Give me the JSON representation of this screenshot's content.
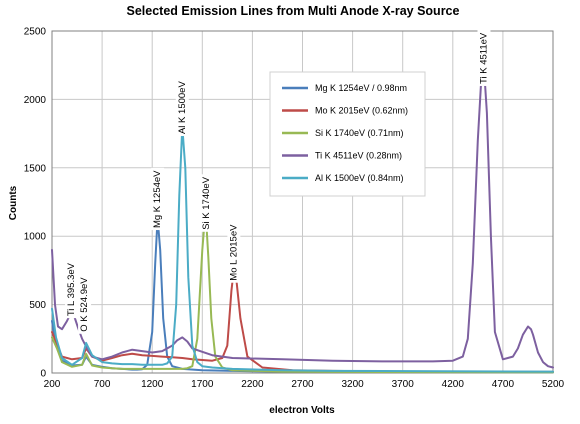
{
  "chart_data": {
    "type": "line",
    "title": "Selected Emission Lines from Multi Anode X-ray Source",
    "xlabel": "electron Volts",
    "ylabel": "Counts",
    "xlim": [
      200,
      5200
    ],
    "ylim": [
      0,
      2500
    ],
    "xticks": [
      200,
      700,
      1200,
      1700,
      2200,
      2700,
      3200,
      3700,
      4200,
      4700,
      5200
    ],
    "yticks": [
      0,
      500,
      1000,
      1500,
      2000,
      2500
    ],
    "grid": true,
    "legend_position": "upper-middle",
    "series": [
      {
        "name": "Mg K 1254eV / 0.98nm",
        "color": "#4a7ebb",
        "x": [
          200,
          240,
          300,
          400,
          500,
          540,
          600,
          700,
          800,
          900,
          1000,
          1050,
          1100,
          1150,
          1200,
          1230,
          1254,
          1280,
          1310,
          1350,
          1400,
          1500,
          1700,
          2000,
          2500,
          3000,
          4000,
          5200
        ],
        "y": [
          380,
          200,
          90,
          55,
          60,
          120,
          60,
          45,
          35,
          30,
          25,
          25,
          28,
          60,
          300,
          800,
          1130,
          900,
          400,
          120,
          50,
          30,
          20,
          15,
          10,
          10,
          8,
          5
        ]
      },
      {
        "name": "Mo K 2015eV (0.62nm)",
        "color": "#be4b48",
        "x": [
          200,
          300,
          400,
          500,
          540,
          600,
          700,
          800,
          900,
          1000,
          1100,
          1200,
          1300,
          1400,
          1500,
          1600,
          1700,
          1800,
          1900,
          1950,
          1990,
          2015,
          2040,
          2080,
          2150,
          2300,
          2600,
          3000,
          3500,
          4000,
          5200
        ],
        "y": [
          300,
          120,
          100,
          110,
          180,
          120,
          90,
          110,
          130,
          140,
          130,
          125,
          120,
          115,
          110,
          100,
          95,
          90,
          110,
          200,
          600,
          760,
          680,
          400,
          120,
          40,
          20,
          15,
          12,
          10,
          8
        ]
      },
      {
        "name": "Si K 1740eV (0.71nm)",
        "color": "#98b954",
        "x": [
          200,
          250,
          300,
          400,
          500,
          540,
          600,
          700,
          800,
          900,
          1000,
          1100,
          1200,
          1300,
          1400,
          1500,
          1550,
          1600,
          1650,
          1700,
          1720,
          1740,
          1760,
          1790,
          1830,
          1900,
          2000,
          2500,
          3000,
          5200
        ],
        "y": [
          260,
          180,
          80,
          45,
          60,
          140,
          55,
          40,
          35,
          30,
          30,
          30,
          30,
          30,
          30,
          30,
          35,
          50,
          250,
          900,
          1080,
          1100,
          850,
          400,
          120,
          40,
          20,
          10,
          8,
          5
        ]
      },
      {
        "name": "Ti K 4511eV (0.28nm)",
        "color": "#7d60a0",
        "x": [
          200,
          230,
          260,
          300,
          350,
          395,
          420,
          460,
          500,
          550,
          600,
          700,
          800,
          900,
          1000,
          1100,
          1200,
          1300,
          1400,
          1450,
          1500,
          1550,
          1600,
          1800,
          2000,
          2500,
          3000,
          3500,
          4000,
          4200,
          4300,
          4350,
          4400,
          4450,
          4480,
          4511,
          4540,
          4580,
          4620,
          4700,
          4800,
          4850,
          4900,
          4950,
          4980,
          5000,
          5050,
          5100,
          5150,
          5200
        ],
        "y": [
          900,
          500,
          340,
          320,
          380,
          450,
          420,
          330,
          250,
          180,
          120,
          100,
          120,
          150,
          170,
          160,
          150,
          160,
          200,
          240,
          260,
          230,
          180,
          130,
          110,
          100,
          90,
          85,
          85,
          90,
          120,
          250,
          800,
          1700,
          2100,
          2230,
          1900,
          1000,
          300,
          100,
          120,
          180,
          280,
          340,
          320,
          280,
          150,
          80,
          50,
          40
        ]
      },
      {
        "name": "Al K 1500eV (0.84nm)",
        "color": "#4bacc6",
        "x": [
          200,
          240,
          300,
          400,
          500,
          540,
          600,
          700,
          800,
          900,
          1000,
          1100,
          1200,
          1300,
          1350,
          1400,
          1440,
          1470,
          1500,
          1530,
          1560,
          1600,
          1650,
          1700,
          1800,
          2000,
          2500,
          3000,
          5200
        ],
        "y": [
          470,
          260,
          110,
          60,
          110,
          220,
          130,
          80,
          70,
          65,
          65,
          60,
          60,
          60,
          70,
          120,
          500,
          1300,
          1800,
          1500,
          700,
          200,
          80,
          50,
          40,
          30,
          20,
          15,
          10
        ]
      }
    ],
    "annotations": [
      {
        "text": "Ti L 395.3eV",
        "x": 395,
        "y": 610
      },
      {
        "text": "O K 524.9eV",
        "x": 525,
        "y": 500
      },
      {
        "text": "Mg K 1254eV",
        "x": 1254,
        "y": 1270
      },
      {
        "text": "Al K 1500eV",
        "x": 1500,
        "y": 1940
      },
      {
        "text": "Si K 1740eV",
        "x": 1740,
        "y": 1240
      },
      {
        "text": "Mo L 2015eV",
        "x": 2015,
        "y": 880
      },
      {
        "text": "Ti K 4511eV",
        "x": 4511,
        "y": 2300
      }
    ]
  }
}
